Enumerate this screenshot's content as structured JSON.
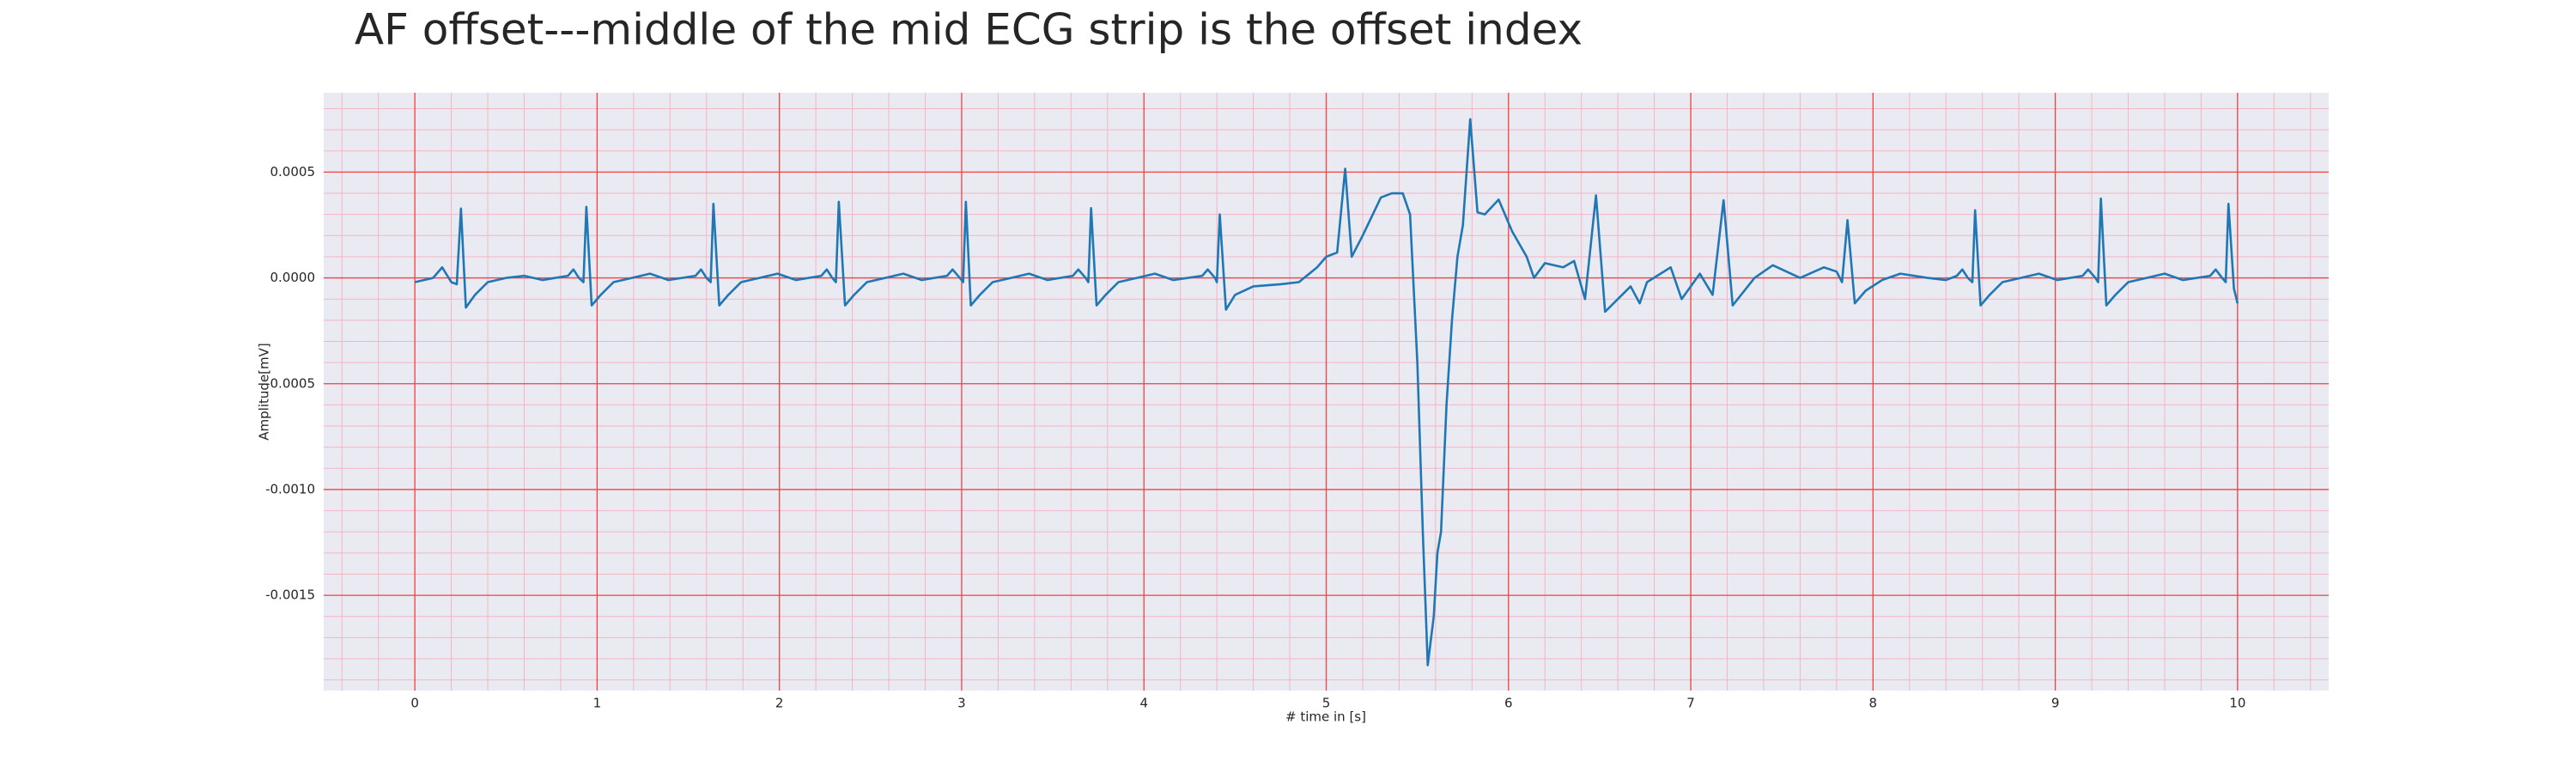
{
  "chart_data": {
    "type": "line",
    "title": "AF offset---middle of the mid ECG strip is the offset index",
    "xlabel": "# time in [s]",
    "ylabel": "Amplitude[mV]",
    "color": "#1f77b4",
    "grid": true,
    "minor_grid": true,
    "xlim": [
      -0.5,
      10.5
    ],
    "ylim": [
      -0.00195,
      0.000875
    ],
    "xticks": [
      0,
      1,
      2,
      3,
      4,
      5,
      6,
      7,
      8,
      9,
      10
    ],
    "yticks": [
      {
        "value": -0.0015,
        "label": "-0.0015"
      },
      {
        "value": -0.001,
        "label": "-0.0010"
      },
      {
        "value": -0.0005,
        "label": "-0.0005"
      },
      {
        "value": 0,
        "label": "0.0000"
      },
      {
        "value": 0.0005,
        "label": "0.0005"
      }
    ],
    "x": [
      0,
      0.1,
      0.15,
      0.2,
      0.23,
      0.253,
      0.28,
      0.33,
      0.4,
      0.5,
      0.6,
      0.7,
      0.84,
      0.87,
      0.9,
      0.925,
      0.941,
      0.97,
      1.02,
      1.09,
      1.19,
      1.29,
      1.39,
      1.54,
      1.57,
      1.6,
      1.623,
      1.638,
      1.67,
      1.72,
      1.79,
      1.89,
      1.99,
      2.09,
      2.23,
      2.26,
      2.29,
      2.31,
      2.326,
      2.36,
      2.41,
      2.48,
      2.58,
      2.68,
      2.78,
      2.92,
      2.95,
      2.99,
      3.008,
      3.023,
      3.05,
      3.1,
      3.17,
      3.27,
      3.37,
      3.47,
      3.61,
      3.64,
      3.68,
      3.695,
      3.71,
      3.74,
      3.79,
      3.86,
      3.96,
      4.06,
      4.16,
      4.32,
      4.35,
      4.39,
      4.4,
      4.416,
      4.45,
      4.5,
      4.6,
      4.75,
      4.85,
      4.95,
      5.0,
      5.06,
      5.104,
      5.14,
      5.2,
      5.3,
      5.36,
      5.42,
      5.46,
      5.5,
      5.53,
      5.557,
      5.59,
      5.61,
      5.63,
      5.66,
      5.69,
      5.72,
      5.75,
      5.79,
      5.83,
      5.87,
      5.946,
      6.02,
      6.1,
      6.14,
      6.2,
      6.3,
      6.36,
      6.42,
      6.48,
      6.53,
      6.6,
      6.67,
      6.72,
      6.76,
      6.89,
      6.95,
      7.05,
      7.12,
      7.18,
      7.23,
      7.35,
      7.45,
      7.6,
      7.73,
      7.8,
      7.83,
      7.86,
      7.9,
      7.96,
      8.05,
      8.15,
      8.3,
      8.4,
      8.46,
      8.49,
      8.52,
      8.545,
      8.56,
      8.59,
      8.64,
      8.71,
      8.81,
      8.91,
      9.01,
      9.15,
      9.18,
      9.22,
      9.235,
      9.25,
      9.28,
      9.33,
      9.4,
      9.5,
      9.6,
      9.7,
      9.85,
      9.88,
      9.915,
      9.935,
      9.95,
      9.98,
      10.0
    ],
    "values": [
      -2e-05,
      0.0,
      5e-05,
      -2e-05,
      -3e-05,
      0.000328,
      -0.00014,
      -8e-05,
      -2e-05,
      0.0,
      1e-05,
      -1e-05,
      1e-05,
      4e-05,
      0.0,
      -2e-05,
      0.000336,
      -0.00013,
      -8e-05,
      -2e-05,
      0.0,
      2e-05,
      -1e-05,
      1e-05,
      4e-05,
      0.0,
      -2e-05,
      0.00035,
      -0.00013,
      -8e-05,
      -2e-05,
      0.0,
      2e-05,
      -1e-05,
      1e-05,
      4e-05,
      0.0,
      -2e-05,
      0.00036,
      -0.00013,
      -8e-05,
      -2e-05,
      0.0,
      2e-05,
      -1e-05,
      1e-05,
      4e-05,
      0.0,
      -2e-05,
      0.00036,
      -0.00013,
      -8e-05,
      -2e-05,
      0.0,
      2e-05,
      -1e-05,
      1e-05,
      4e-05,
      0.0,
      -2e-05,
      0.00033,
      -0.00013,
      -8e-05,
      -2e-05,
      0.0,
      2e-05,
      -1e-05,
      1e-05,
      4e-05,
      0.0,
      -2e-05,
      0.0003,
      -0.00015,
      -8e-05,
      -4e-05,
      -3e-05,
      -2e-05,
      5e-05,
      0.0001,
      0.00012,
      0.000516,
      0.0001,
      0.0002,
      0.00038,
      0.0004,
      0.0004,
      0.0003,
      -0.0004,
      -0.0012,
      -0.00183,
      -0.0016,
      -0.0013,
      -0.0012,
      -0.0006,
      -0.0002,
      0.0001,
      0.00025,
      0.00075,
      0.00031,
      0.0003,
      0.00037,
      0.00022,
      0.0001,
      0.0,
      7e-05,
      5e-05,
      8e-05,
      -0.0001,
      0.00039,
      -0.00016,
      -0.0001,
      -4e-05,
      -0.00012,
      -2e-05,
      5e-05,
      -0.0001,
      2e-05,
      -8e-05,
      0.000367,
      -0.00013,
      0.0,
      6e-05,
      0.0,
      5e-05,
      3e-05,
      -2e-05,
      0.000273,
      -0.00012,
      -6e-05,
      -1e-05,
      2e-05,
      0.0,
      -1e-05,
      1e-05,
      4e-05,
      0.0,
      -2e-05,
      0.00032,
      -0.00013,
      -8e-05,
      -2e-05,
      0.0,
      2e-05,
      -1e-05,
      1e-05,
      4e-05,
      0.0,
      -2e-05,
      0.000375,
      -0.00013,
      -8e-05,
      -2e-05,
      0.0,
      2e-05,
      -1e-05,
      1e-05,
      4e-05,
      0.0,
      -2e-05,
      0.00035,
      -5e-05,
      -0.00012
    ]
  }
}
